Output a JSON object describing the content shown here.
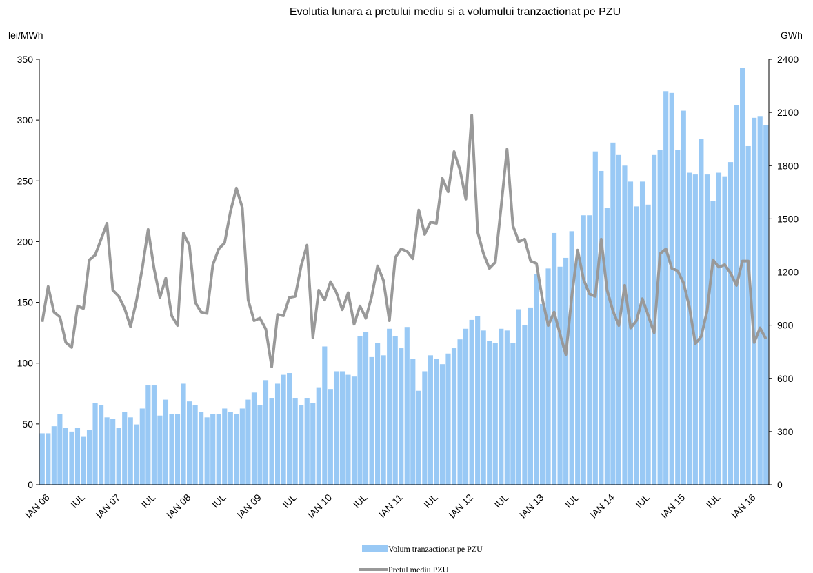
{
  "chart_data": {
    "type": "combo",
    "title": "Evolutia lunara a pretului mediu si a volumului tranzactionat pe PZU",
    "y_label": "lei/MWh",
    "y2_label": "GWh",
    "categories": [
      "IAN 06",
      null,
      null,
      null,
      null,
      null,
      "IUL",
      null,
      null,
      null,
      null,
      null,
      "IAN 07",
      null,
      null,
      null,
      null,
      null,
      "IUL",
      null,
      null,
      null,
      null,
      null,
      "IAN 08",
      null,
      null,
      null,
      null,
      null,
      "IUL",
      null,
      null,
      null,
      null,
      null,
      "IAN 09",
      null,
      null,
      null,
      null,
      null,
      "IUL",
      null,
      null,
      null,
      null,
      null,
      "IAN 10",
      null,
      null,
      null,
      null,
      null,
      "IUL",
      null,
      null,
      null,
      null,
      null,
      "IAN 11",
      null,
      null,
      null,
      null,
      null,
      "IUL",
      null,
      null,
      null,
      null,
      null,
      "IAN 12",
      null,
      null,
      null,
      null,
      null,
      "IUL",
      null,
      null,
      null,
      null,
      null,
      "IAN 13",
      null,
      null,
      null,
      null,
      null,
      "IUL",
      null,
      null,
      null,
      null,
      null,
      "IAN 14",
      null,
      null,
      null,
      null,
      null,
      "IUL",
      null,
      null,
      null,
      null,
      null,
      "IAN 15",
      null,
      null,
      null,
      null,
      null,
      "IUL",
      null,
      null,
      null,
      null,
      null,
      "IAN 16",
      null,
      null,
      null
    ],
    "series": [
      {
        "name": "Volum tranzactionat pe PZU",
        "type": "bar",
        "axis": "y2",
        "color": "#99c9f5",
        "values": [
          290,
          290,
          330,
          400,
          320,
          300,
          320,
          270,
          310,
          460,
          450,
          380,
          370,
          320,
          410,
          380,
          340,
          430,
          560,
          560,
          390,
          480,
          400,
          400,
          570,
          470,
          450,
          410,
          380,
          400,
          400,
          430,
          410,
          400,
          430,
          480,
          520,
          450,
          590,
          490,
          570,
          620,
          630,
          490,
          450,
          490,
          460,
          550,
          780,
          540,
          640,
          640,
          620,
          610,
          840,
          860,
          720,
          800,
          730,
          880,
          840,
          770,
          890,
          710,
          530,
          640,
          730,
          710,
          680,
          740,
          770,
          820,
          880,
          930,
          950,
          870,
          810,
          800,
          880,
          870,
          800,
          990,
          900,
          1000,
          1190,
          1020,
          1220,
          1420,
          1230,
          1280,
          1430,
          1280,
          1520,
          1520,
          1880,
          1770,
          1560,
          1930,
          1860,
          1800,
          1710,
          1570,
          1710,
          1580,
          1860,
          1890,
          2220,
          2210,
          1890,
          2110,
          1760,
          1750,
          1950,
          1750,
          1600,
          1760,
          1740,
          1820,
          2140,
          2350,
          1910,
          2070,
          2080,
          2030
        ]
      },
      {
        "name": "Pretul mediu PZU",
        "type": "line",
        "axis": "y",
        "color": "#999999",
        "values": [
          134,
          163,
          142,
          138,
          117,
          113,
          147,
          145,
          185,
          189,
          202,
          215,
          160,
          155,
          145,
          130,
          151,
          178,
          210,
          178,
          154,
          170,
          139,
          131,
          207,
          197,
          150,
          142,
          141,
          181,
          194,
          199,
          225,
          244,
          228,
          152,
          135,
          137,
          128,
          97,
          140,
          139,
          154,
          155,
          180,
          197,
          121,
          160,
          152,
          167,
          158,
          144,
          158,
          132,
          147,
          137,
          155,
          180,
          168,
          135,
          187,
          194,
          192,
          186,
          226,
          206,
          216,
          215,
          252,
          241,
          274,
          259,
          235,
          304,
          208,
          190,
          178,
          183,
          229,
          276,
          213,
          200,
          202,
          184,
          182,
          153,
          131,
          142,
          124,
          107,
          155,
          193,
          169,
          157,
          155,
          202,
          160,
          143,
          131,
          164,
          129,
          135,
          153,
          139,
          125,
          190,
          194,
          178,
          176,
          166,
          146,
          116,
          122,
          143,
          185,
          179,
          181,
          174,
          164,
          184,
          184,
          117,
          129,
          120
        ]
      }
    ],
    "ylim": [
      0,
      350
    ],
    "yticks": [
      0,
      50,
      100,
      150,
      200,
      250,
      300,
      350
    ],
    "y2lim": [
      0,
      2400
    ],
    "y2ticks": [
      0,
      300,
      600,
      900,
      1200,
      1500,
      1800,
      2100,
      2400
    ],
    "grid": false
  }
}
